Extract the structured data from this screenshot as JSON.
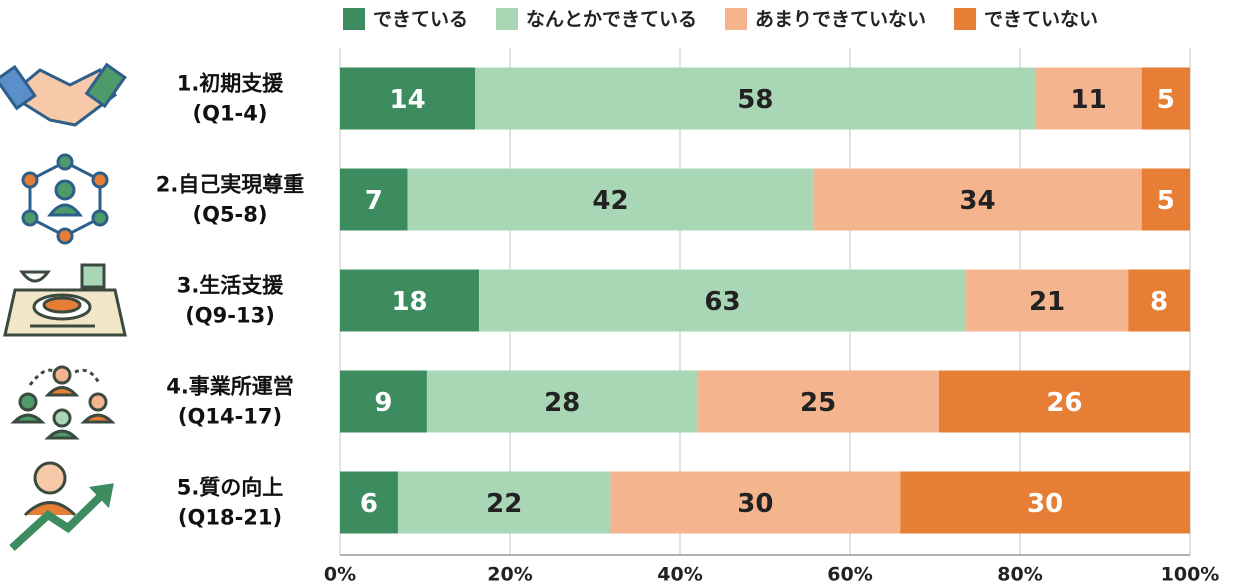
{
  "chart_data": {
    "type": "bar",
    "orientation": "horizontal",
    "stacking": "percent",
    "categories": [
      [
        "1.初期支援",
        "(Q1-4)"
      ],
      [
        "2.自己実現尊重",
        "(Q5-8)"
      ],
      [
        "3.生活支援",
        "(Q9-13)"
      ],
      [
        "4.事業所運営",
        "(Q14-17)"
      ],
      [
        "5.質の向上",
        "(Q18-21)"
      ]
    ],
    "series": [
      {
        "name": "できている",
        "color": "#3d8c5f",
        "values": [
          14,
          7,
          18,
          9,
          6
        ]
      },
      {
        "name": "なんとかできている",
        "color": "#a9d6b4",
        "values": [
          58,
          42,
          63,
          28,
          22
        ]
      },
      {
        "name": "あまりできていない",
        "color": "#f4b48d",
        "values": [
          11,
          34,
          21,
          25,
          30
        ]
      },
      {
        "name": "できていない",
        "color": "#e67e36",
        "values": [
          5,
          5,
          8,
          26,
          30
        ]
      }
    ],
    "xlim": [
      0,
      100
    ],
    "xticks": [
      {
        "value": 0,
        "label": "0%"
      },
      {
        "value": 20,
        "label": "20%"
      },
      {
        "value": 40,
        "label": "40%"
      },
      {
        "value": 60,
        "label": "60%"
      },
      {
        "value": 80,
        "label": "80%"
      },
      {
        "value": 100,
        "label": "100%"
      }
    ],
    "grid": true,
    "legend": "top"
  }
}
